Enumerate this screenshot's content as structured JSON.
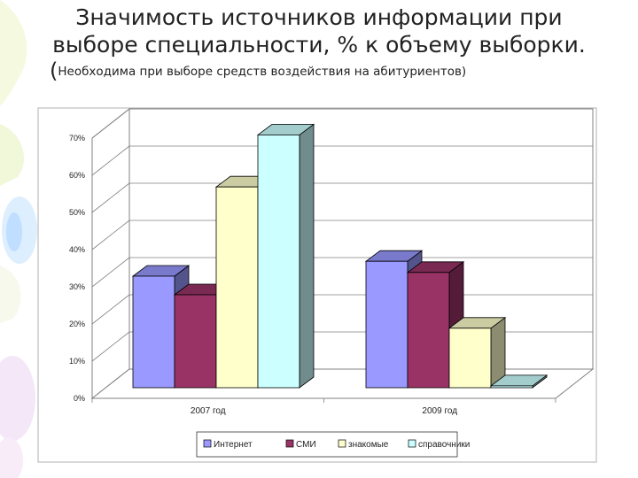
{
  "slide": {
    "title_line1": "Значимость источников информации  при",
    "title_line2": "выборе специальности, % к объему выборки.",
    "subtitle_paren": "(",
    "subtitle_text": "Необходима при выборе средств воздействия на абитуриентов)"
  },
  "chart_data": {
    "type": "bar",
    "title": "",
    "xlabel": "",
    "ylabel": "",
    "categories": [
      "2007 год",
      "2009 год"
    ],
    "series": [
      {
        "name": "Интернет",
        "values": [
          30,
          34
        ],
        "color": "#9999ff"
      },
      {
        "name": "СМИ",
        "values": [
          25,
          31
        ],
        "color": "#993366"
      },
      {
        "name": "знакомые",
        "values": [
          54,
          16
        ],
        "color": "#ffffcc"
      },
      {
        "name": "справочники",
        "values": [
          68,
          0.5
        ],
        "color": "#ccffff"
      }
    ],
    "ylim": [
      0,
      70
    ],
    "yticks": [
      "0%",
      "10%",
      "20%",
      "30%",
      "40%",
      "50%",
      "60%",
      "70%"
    ],
    "grid": true,
    "three_d": true,
    "legend_position": "bottom"
  }
}
